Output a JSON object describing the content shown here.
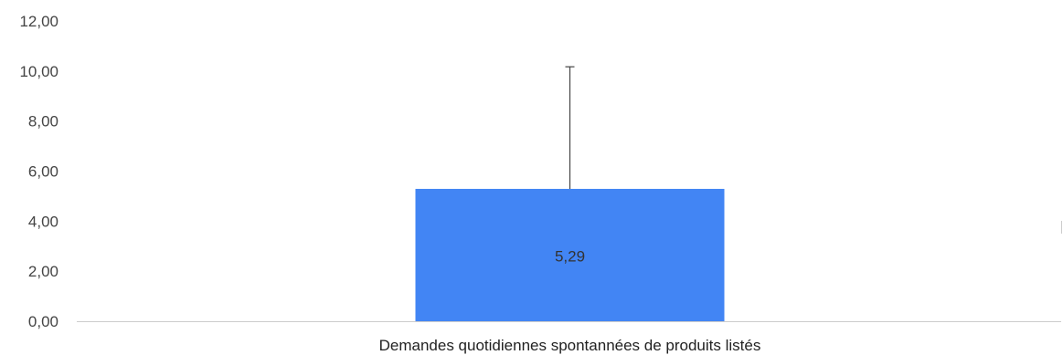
{
  "chart_data": {
    "type": "bar",
    "categories": [
      "Demandes quotidiennes spontannées de produits listés"
    ],
    "values": [
      5.29
    ],
    "value_labels": [
      "5,29"
    ],
    "error_bar_upper": [
      10.17
    ],
    "ylim": [
      0,
      12
    ],
    "yticks": [
      0,
      2,
      4,
      6,
      8,
      10,
      12
    ],
    "ytick_labels": [
      "0,00",
      "2,00",
      "4,00",
      "6,00",
      "8,00",
      "10,00",
      "12,00"
    ],
    "title": "",
    "xlabel": "",
    "ylabel": "",
    "grid": false,
    "legend": "none",
    "bar_color": "#4285F4",
    "axis_color": "#cccccc",
    "error_bar_color": "#444444"
  }
}
